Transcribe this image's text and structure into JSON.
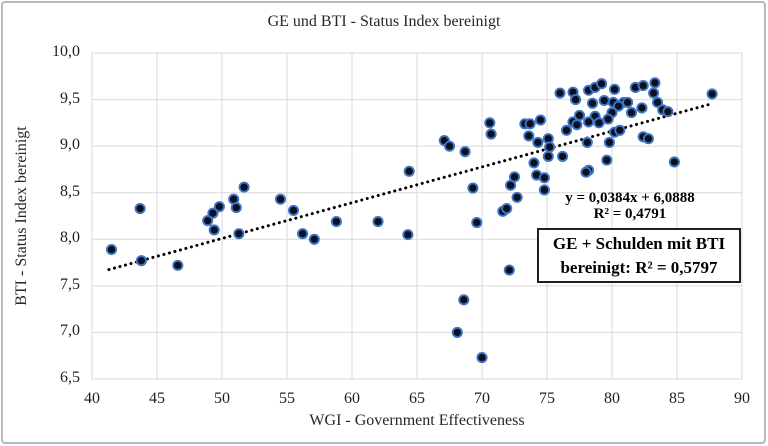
{
  "title": "GE und BTI - Status Index bereinigt",
  "chart_data": {
    "type": "scatter",
    "title": "GE und BTI - Status Index bereinigt",
    "xlabel": "WGI - Government Effectiveness",
    "ylabel": "BTI - Status Index bereinigt",
    "xlim": [
      40,
      90
    ],
    "ylim": [
      6.5,
      10.0
    ],
    "grid": true,
    "x_ticks": [
      40,
      45,
      50,
      55,
      60,
      65,
      70,
      75,
      80,
      85,
      90
    ],
    "x_tick_labels": [
      "40",
      "45",
      "50",
      "55",
      "60",
      "65",
      "70",
      "75",
      "80",
      "85",
      "90"
    ],
    "y_ticks": [
      10.0,
      9.5,
      9.0,
      8.5,
      8.0,
      7.5,
      7.0,
      6.5
    ],
    "y_tick_labels": [
      "10,0",
      "9,5",
      "9,0",
      "8,5",
      "8,0",
      "7,5",
      "7,0",
      "6,5"
    ],
    "points": [
      [
        41.5,
        7.89
      ],
      [
        43.7,
        8.33
      ],
      [
        43.8,
        7.77
      ],
      [
        46.6,
        7.72
      ],
      [
        48.9,
        8.2
      ],
      [
        49.3,
        8.28
      ],
      [
        49.4,
        8.1
      ],
      [
        49.8,
        8.35
      ],
      [
        50.9,
        8.43
      ],
      [
        51.1,
        8.34
      ],
      [
        51.3,
        8.06
      ],
      [
        51.7,
        8.56
      ],
      [
        54.5,
        8.43
      ],
      [
        55.5,
        8.31
      ],
      [
        56.2,
        8.06
      ],
      [
        57.1,
        8.0
      ],
      [
        58.8,
        8.19
      ],
      [
        62.0,
        8.19
      ],
      [
        64.3,
        8.05
      ],
      [
        64.4,
        8.73
      ],
      [
        67.1,
        9.06
      ],
      [
        67.5,
        9.0
      ],
      [
        68.7,
        8.94
      ],
      [
        69.3,
        8.55
      ],
      [
        69.6,
        8.18
      ],
      [
        68.6,
        7.35
      ],
      [
        68.1,
        7.0
      ],
      [
        70.0,
        6.73
      ],
      [
        70.6,
        9.25
      ],
      [
        70.7,
        9.13
      ],
      [
        71.6,
        8.3
      ],
      [
        71.9,
        8.33
      ],
      [
        72.1,
        7.67
      ],
      [
        72.2,
        8.58
      ],
      [
        72.5,
        8.67
      ],
      [
        72.7,
        8.45
      ],
      [
        73.3,
        9.24
      ],
      [
        73.7,
        9.24
      ],
      [
        73.6,
        9.11
      ],
      [
        74.5,
        9.28
      ],
      [
        74.3,
        9.04
      ],
      [
        74.0,
        8.82
      ],
      [
        74.2,
        8.69
      ],
      [
        74.8,
        8.66
      ],
      [
        74.8,
        8.53
      ],
      [
        75.1,
        9.08
      ],
      [
        75.2,
        8.99
      ],
      [
        75.1,
        8.89
      ],
      [
        76.0,
        9.57
      ],
      [
        76.2,
        8.89
      ],
      [
        76.5,
        9.17
      ],
      [
        77.0,
        9.58
      ],
      [
        77.2,
        9.5
      ],
      [
        77.0,
        9.26
      ],
      [
        77.3,
        9.23
      ],
      [
        77.5,
        9.33
      ],
      [
        78.2,
        9.6
      ],
      [
        78.7,
        9.63
      ],
      [
        79.2,
        9.67
      ],
      [
        80.2,
        9.61
      ],
      [
        81.8,
        9.63
      ],
      [
        82.4,
        9.65
      ],
      [
        83.3,
        9.68
      ],
      [
        80.1,
        9.47
      ],
      [
        80.9,
        9.47
      ],
      [
        81.2,
        9.47
      ],
      [
        83.2,
        9.57
      ],
      [
        83.5,
        9.47
      ],
      [
        78.5,
        9.46
      ],
      [
        79.4,
        9.49
      ],
      [
        80.0,
        9.36
      ],
      [
        80.5,
        9.43
      ],
      [
        81.5,
        9.36
      ],
      [
        82.3,
        9.41
      ],
      [
        83.9,
        9.39
      ],
      [
        84.3,
        9.37
      ],
      [
        78.7,
        9.32
      ],
      [
        79.7,
        9.29
      ],
      [
        78.2,
        9.26
      ],
      [
        79.0,
        9.25
      ],
      [
        80.2,
        9.15
      ],
      [
        80.6,
        9.17
      ],
      [
        79.8,
        9.04
      ],
      [
        82.4,
        9.1
      ],
      [
        82.8,
        9.08
      ],
      [
        78.1,
        9.04
      ],
      [
        79.6,
        8.85
      ],
      [
        78.2,
        8.74
      ],
      [
        78.0,
        8.72
      ],
      [
        84.8,
        8.83
      ],
      [
        87.7,
        9.56
      ]
    ],
    "trendline": {
      "slope": 0.0384,
      "intercept": 6.0888,
      "x_start": 41.3,
      "x_end": 87.6,
      "style": "dotted",
      "equation_label": "y = 0,0384x + 6,0888",
      "r2_label": "R² = 0,4791"
    },
    "annotation_box": {
      "line1": "GE + Schulden mit BTI",
      "line2": "bereinigt: R² = 0,5797"
    },
    "legend_position": "none",
    "colors": {
      "marker_fill": "#0b101c",
      "marker_stroke": "#3d74c6",
      "trendline": "#000000",
      "gridline": "#d9d9d9",
      "text": "#262626"
    }
  }
}
